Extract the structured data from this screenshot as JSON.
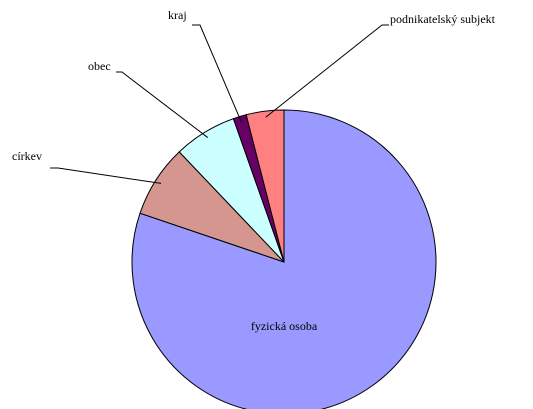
{
  "chart_data": {
    "type": "pie",
    "categories": [
      "fyzická osoba",
      "církev",
      "obec",
      "kraj",
      "podnikatelský subjekt"
    ],
    "values": [
      80.2,
      7.7,
      6.7,
      1.4,
      4
    ],
    "colors": [
      "#9999ff",
      "#d4968f",
      "#ccffff",
      "#660066",
      "#ff8080"
    ]
  }
}
